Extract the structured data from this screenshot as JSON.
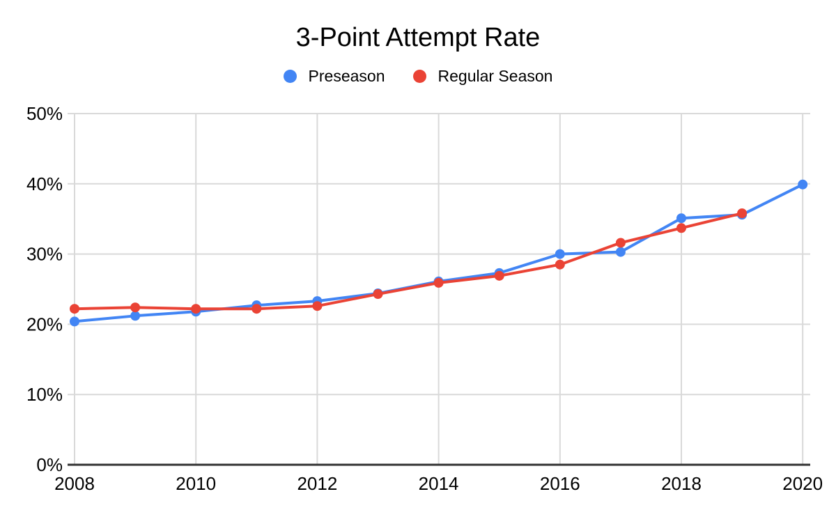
{
  "chart_data": {
    "type": "line",
    "title": "3-Point Attempt Rate",
    "legend_position": "top",
    "grid": true,
    "x": [
      2008,
      2009,
      2010,
      2011,
      2012,
      2013,
      2014,
      2015,
      2016,
      2017,
      2018,
      2019,
      2020
    ],
    "x_axis_tick_labels": [
      "2008",
      "2010",
      "2012",
      "2014",
      "2016",
      "2018",
      "2020"
    ],
    "y_ticks_percent": [
      0,
      10,
      20,
      30,
      40,
      50
    ],
    "y_axis_tick_labels": [
      "0%",
      "10%",
      "20%",
      "30%",
      "40%",
      "50%"
    ],
    "ylim": [
      0,
      50
    ],
    "xlabel": "",
    "ylabel": "",
    "colors": {
      "grid": "#d9d9d9",
      "axis": "#333333",
      "text": "#000000",
      "background": "#ffffff"
    },
    "series": [
      {
        "name": "Preseason",
        "color": "#4285f4",
        "values": [
          20.4,
          21.2,
          21.8,
          22.7,
          23.3,
          24.4,
          26.1,
          27.3,
          30.0,
          30.3,
          35.1,
          35.6,
          39.9
        ]
      },
      {
        "name": "Regular Season",
        "color": "#ea4335",
        "values": [
          22.2,
          22.4,
          22.2,
          22.2,
          22.6,
          24.3,
          25.9,
          26.9,
          28.5,
          31.6,
          33.7,
          35.8,
          null
        ]
      }
    ]
  }
}
